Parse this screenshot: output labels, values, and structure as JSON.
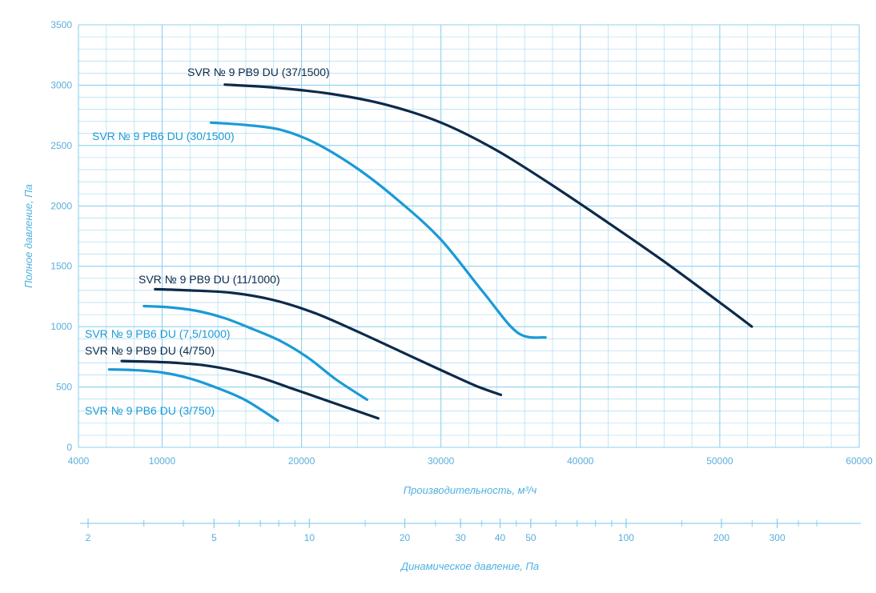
{
  "chart_data": {
    "type": "line",
    "title": "",
    "xlabel": "Производительность, м³/ч",
    "ylabel": "Полное давление, Па",
    "secondary_xlabel": "Динамическое давление, Па",
    "xlim": [
      4000,
      60000
    ],
    "ylim": [
      0,
      3500
    ],
    "x_ticks": [
      "4000",
      "10000",
      "20000",
      "30000",
      "40000",
      "50000",
      "60000"
    ],
    "y_ticks": [
      "0",
      "500",
      "1000",
      "1500",
      "2000",
      "2500",
      "3000",
      "3500"
    ],
    "secondary_ticks": [
      "2",
      "5",
      "10",
      "20",
      "30",
      "40",
      "50",
      "100",
      "200",
      "300"
    ],
    "secondary_scale": "log",
    "grid": true,
    "colors": {
      "grid": "#8fd0ee",
      "axis_text": "#5aaedc",
      "dark": "#0d2a4a",
      "light": "#1b9ad6"
    },
    "series": [
      {
        "name": "SVR № 9 PB9 DU (37/1500)",
        "color": "#0d2a4a",
        "x": [
          14500,
          18000,
          22000,
          26000,
          30000,
          34000,
          38000,
          42000,
          46000,
          50000,
          52300
        ],
        "y": [
          3005,
          2980,
          2930,
          2840,
          2690,
          2460,
          2170,
          1860,
          1540,
          1200,
          1000
        ]
      },
      {
        "name": "SVR № 9 PB6 DU (30/1500)",
        "color": "#1b9ad6",
        "x": [
          13500,
          16000,
          18500,
          21000,
          24000,
          27000,
          30000,
          33000,
          35500,
          37500
        ],
        "y": [
          2690,
          2670,
          2630,
          2520,
          2310,
          2040,
          1720,
          1290,
          950,
          910
        ]
      },
      {
        "name": "SVR № 9 PB9 DU (11/1000)",
        "color": "#0d2a4a",
        "x": [
          9500,
          12000,
          15000,
          18000,
          21000,
          24000,
          27000,
          30000,
          32500,
          34300
        ],
        "y": [
          1310,
          1300,
          1280,
          1220,
          1110,
          960,
          800,
          640,
          510,
          435
        ]
      },
      {
        "name": "SVR № 9 PB6 DU (7,5/1000)",
        "color": "#1b9ad6",
        "x": [
          8700,
          10500,
          12500,
          14500,
          16500,
          18500,
          20500,
          22500,
          24700
        ],
        "y": [
          1170,
          1160,
          1130,
          1070,
          980,
          880,
          740,
          560,
          395
        ]
      },
      {
        "name": "SVR № 9 PB9 DU (4/750)",
        "color": "#0d2a4a",
        "x": [
          7100,
          9000,
          11000,
          13000,
          15000,
          17000,
          19000,
          21000,
          23000,
          25500
        ],
        "y": [
          715,
          710,
          700,
          680,
          640,
          580,
          500,
          420,
          340,
          240
        ]
      },
      {
        "name": "SVR № 9 PB6 DU (3/750)",
        "color": "#1b9ad6",
        "x": [
          6200,
          8000,
          10000,
          12000,
          14000,
          16000,
          18300
        ],
        "y": [
          645,
          640,
          620,
          570,
          490,
          390,
          220
        ]
      }
    ],
    "labels": [
      "SVR № 9 PB9 DU (37/1500)",
      "SVR № 9 PB6 DU (30/1500)",
      "SVR № 9 PB9 DU (11/1000)",
      "SVR № 9 PB6 DU (7,5/1000)",
      "SVR № 9 PB9 DU (4/750)",
      "SVR № 9 PB6 DU (3/750)"
    ]
  }
}
